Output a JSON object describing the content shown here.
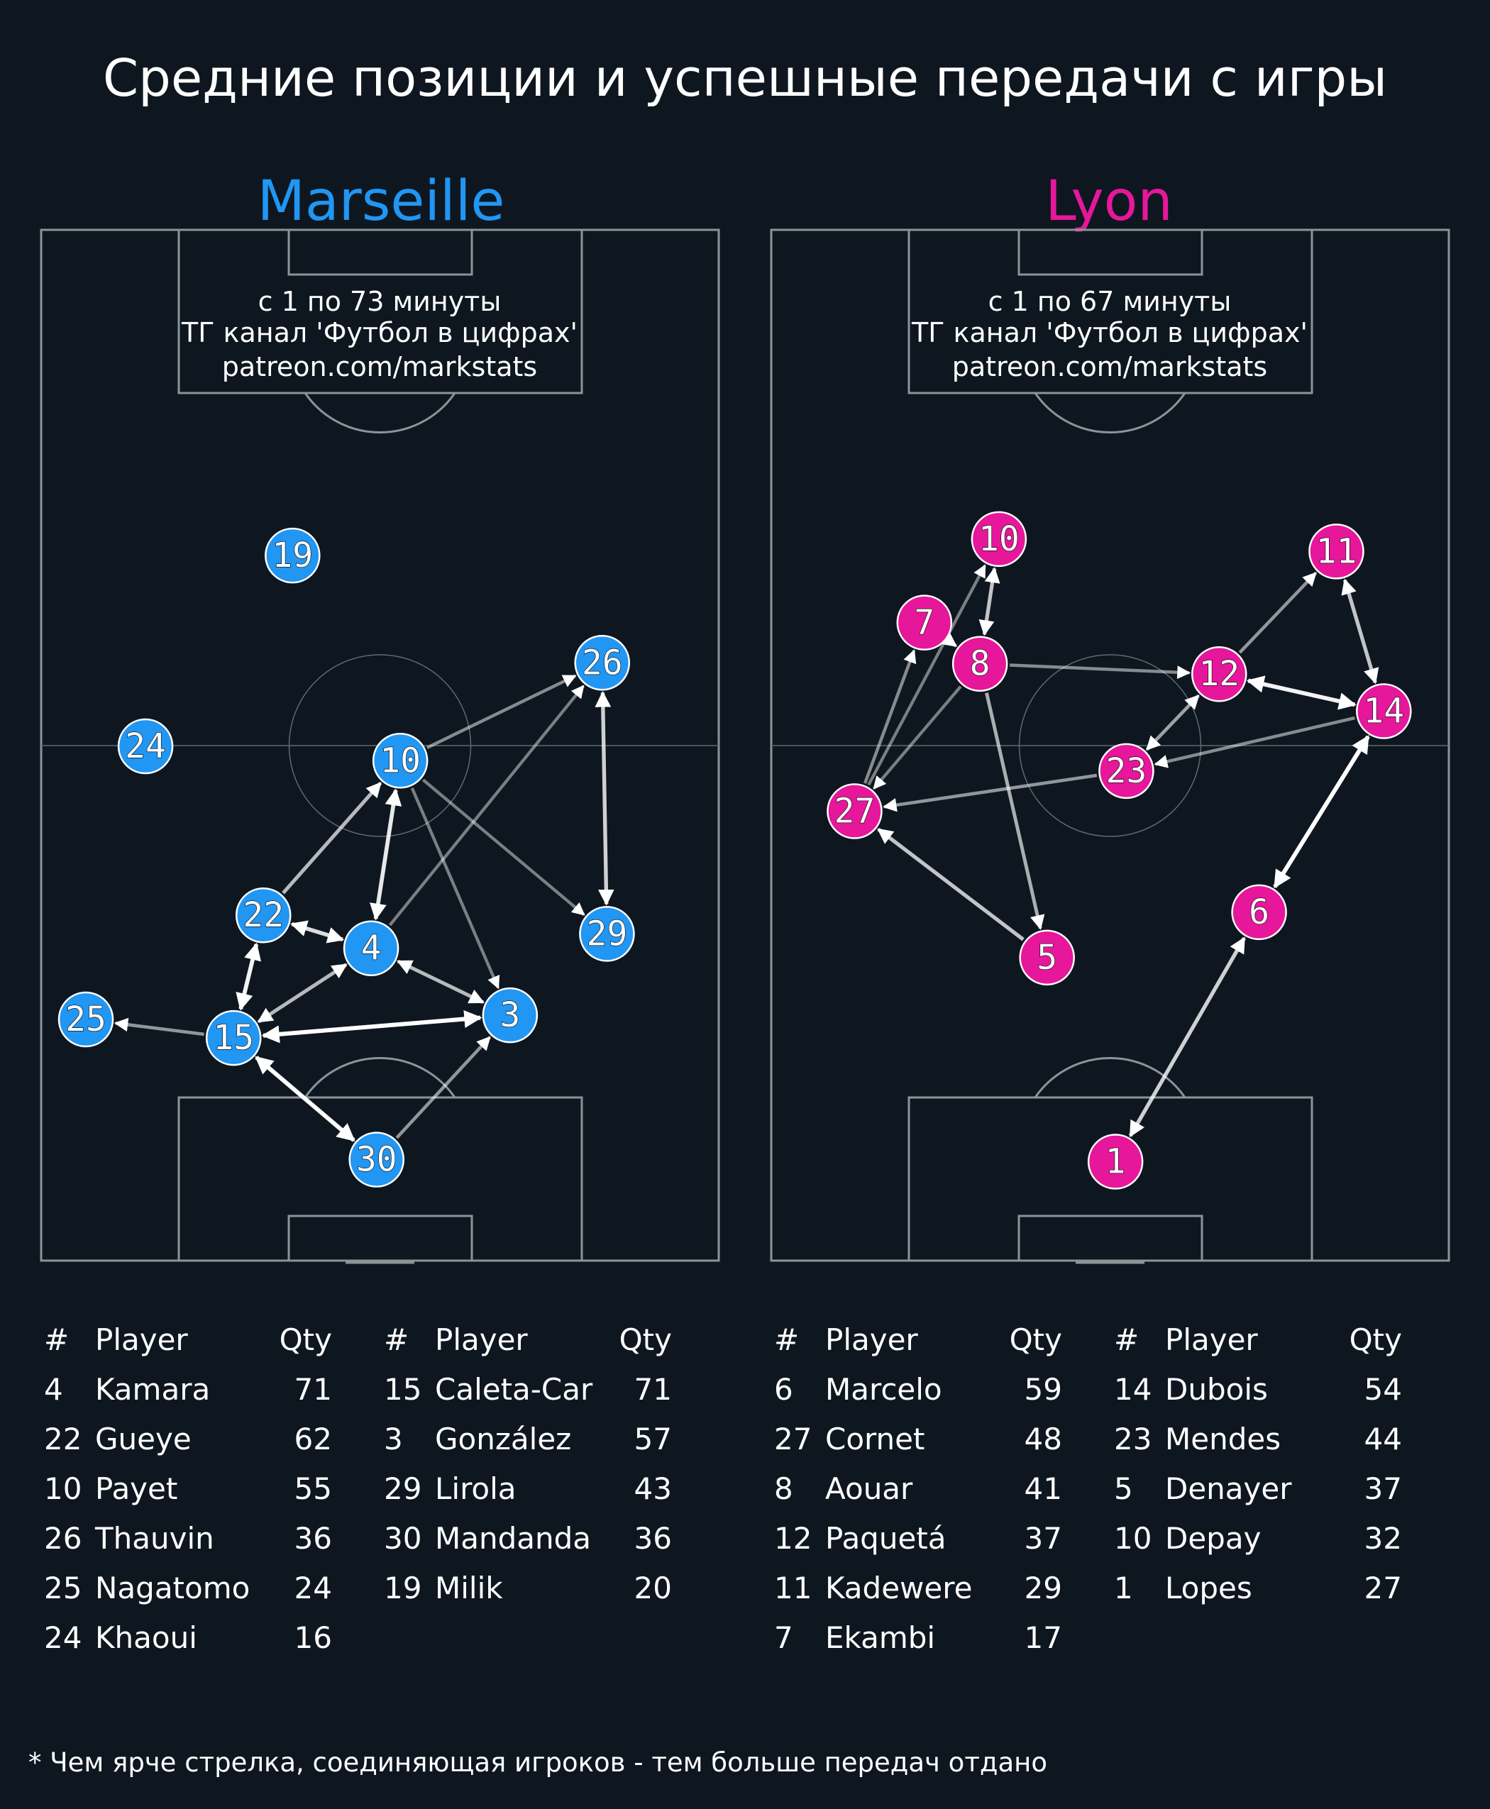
{
  "title": "Средние позиции и успешные передачи с игры",
  "footnote": "* Чем ярче стрелка, соединяющая игроков - тем больше передач отдано",
  "colors": {
    "background": "#0e1720",
    "lines": "#8a9598",
    "marseille": "#2196f3",
    "lyon": "#e6179a"
  },
  "teams": [
    {
      "name": "Marseille",
      "color": "#2196f3",
      "info": [
        "с 1 по 73 минуты",
        "ТГ канал 'Футбол в цифрах'",
        "patreon.com/markstats"
      ],
      "players": [
        {
          "num": "19",
          "x": 37.1,
          "y": 68.4
        },
        {
          "num": "24",
          "x": 15.4,
          "y": 49.9
        },
        {
          "num": "26",
          "x": 82.8,
          "y": 58.0
        },
        {
          "num": "10",
          "x": 53.0,
          "y": 48.5
        },
        {
          "num": "22",
          "x": 32.8,
          "y": 33.5
        },
        {
          "num": "4",
          "x": 48.7,
          "y": 30.3
        },
        {
          "num": "29",
          "x": 83.5,
          "y": 31.7
        },
        {
          "num": "3",
          "x": 69.2,
          "y": 23.8
        },
        {
          "num": "25",
          "x": 6.6,
          "y": 23.4
        },
        {
          "num": "15",
          "x": 28.4,
          "y": 21.6
        },
        {
          "num": "30",
          "x": 49.5,
          "y": 9.8
        }
      ],
      "passes": [
        {
          "from": "30",
          "to": "15",
          "alpha": 1.0,
          "both": true
        },
        {
          "from": "15",
          "to": "3",
          "alpha": 1.0,
          "both": true
        },
        {
          "from": "15",
          "to": "22",
          "alpha": 0.95,
          "both": true
        },
        {
          "from": "4",
          "to": "10",
          "alpha": 0.9,
          "both": true
        },
        {
          "from": "22",
          "to": "4",
          "alpha": 0.85,
          "both": true
        },
        {
          "from": "4",
          "to": "3",
          "alpha": 0.7,
          "both": true
        },
        {
          "from": "15",
          "to": "4",
          "alpha": 0.7,
          "both": true
        },
        {
          "from": "26",
          "to": "29",
          "alpha": 0.8,
          "both": true
        },
        {
          "from": "22",
          "to": "10",
          "alpha": 0.7,
          "both": false
        },
        {
          "from": "30",
          "to": "3",
          "alpha": 0.55,
          "both": false
        },
        {
          "from": "15",
          "to": "25",
          "alpha": 0.55,
          "both": false
        },
        {
          "from": "10",
          "to": "26",
          "alpha": 0.5,
          "both": false
        },
        {
          "from": "4",
          "to": "26",
          "alpha": 0.45,
          "both": false
        },
        {
          "from": "10",
          "to": "3",
          "alpha": 0.45,
          "both": false
        },
        {
          "from": "10",
          "to": "29",
          "alpha": 0.45,
          "both": false
        }
      ],
      "tables": [
        {
          "headers": [
            "#",
            "Player",
            "Qty"
          ],
          "rows": [
            [
              "4",
              "Kamara",
              "71"
            ],
            [
              "22",
              "Gueye",
              "62"
            ],
            [
              "10",
              "Payet",
              "55"
            ],
            [
              "26",
              "Thauvin",
              "36"
            ],
            [
              "25",
              "Nagatomo",
              "24"
            ],
            [
              "24",
              "Khaoui",
              "16"
            ]
          ]
        },
        {
          "headers": [
            "#",
            "Player",
            "Qty"
          ],
          "rows": [
            [
              "15",
              "Caleta-Car",
              "71"
            ],
            [
              "3",
              "González",
              "57"
            ],
            [
              "29",
              "Lirola",
              "43"
            ],
            [
              "30",
              "Mandanda",
              "36"
            ],
            [
              "19",
              "Milik",
              "20"
            ]
          ]
        }
      ]
    },
    {
      "name": "Lyon",
      "color": "#e6179a",
      "info": [
        "с 1 по 67 минуты",
        "ТГ канал 'Футбол в цифрах'",
        "patreon.com/markstats"
      ],
      "players": [
        {
          "num": "10",
          "x": 33.6,
          "y": 70.0
        },
        {
          "num": "11",
          "x": 83.4,
          "y": 68.8
        },
        {
          "num": "7",
          "x": 22.6,
          "y": 61.9
        },
        {
          "num": "8",
          "x": 30.8,
          "y": 57.9
        },
        {
          "num": "12",
          "x": 66.1,
          "y": 56.9
        },
        {
          "num": "14",
          "x": 90.4,
          "y": 53.3
        },
        {
          "num": "23",
          "x": 52.4,
          "y": 47.5
        },
        {
          "num": "27",
          "x": 12.3,
          "y": 43.6
        },
        {
          "num": "6",
          "x": 72.0,
          "y": 33.8
        },
        {
          "num": "5",
          "x": 40.7,
          "y": 29.4
        },
        {
          "num": "1",
          "x": 50.8,
          "y": 9.6
        }
      ],
      "passes": [
        {
          "from": "6",
          "to": "14",
          "alpha": 1.0,
          "both": true
        },
        {
          "from": "12",
          "to": "14",
          "alpha": 0.95,
          "both": true
        },
        {
          "from": "1",
          "to": "6",
          "alpha": 0.8,
          "both": true
        },
        {
          "from": "11",
          "to": "14",
          "alpha": 0.75,
          "both": true
        },
        {
          "from": "10",
          "to": "8",
          "alpha": 0.75,
          "both": true
        },
        {
          "from": "23",
          "to": "12",
          "alpha": 0.6,
          "both": true
        },
        {
          "from": "5",
          "to": "27",
          "alpha": 0.75,
          "both": false
        },
        {
          "from": "8",
          "to": "5",
          "alpha": 0.65,
          "both": false
        },
        {
          "from": "7",
          "to": "8",
          "alpha": 0.6,
          "both": false
        },
        {
          "from": "12",
          "to": "11",
          "alpha": 0.55,
          "both": false
        },
        {
          "from": "23",
          "to": "27",
          "alpha": 0.55,
          "both": false
        },
        {
          "from": "14",
          "to": "23",
          "alpha": 0.5,
          "both": false
        },
        {
          "from": "8",
          "to": "12",
          "alpha": 0.5,
          "both": false
        },
        {
          "from": "27",
          "to": "7",
          "alpha": 0.5,
          "both": false
        },
        {
          "from": "27",
          "to": "10",
          "alpha": 0.45,
          "both": false
        },
        {
          "from": "8",
          "to": "27",
          "alpha": 0.45,
          "both": false
        }
      ],
      "tables": [
        {
          "headers": [
            "#",
            "Player",
            "Qty"
          ],
          "rows": [
            [
              "6",
              "Marcelo",
              "59"
            ],
            [
              "27",
              "Cornet",
              "48"
            ],
            [
              "8",
              "Aouar",
              "41"
            ],
            [
              "12",
              "Paquetá",
              "37"
            ],
            [
              "11",
              "Kadewere",
              "29"
            ],
            [
              "7",
              "Ekambi",
              "17"
            ]
          ]
        },
        {
          "headers": [
            "#",
            "Player",
            "Qty"
          ],
          "rows": [
            [
              "14",
              "Dubois",
              "54"
            ],
            [
              "23",
              "Mendes",
              "44"
            ],
            [
              "5",
              "Denayer",
              "37"
            ],
            [
              "10",
              "Depay",
              "32"
            ],
            [
              "1",
              "Lopes",
              "27"
            ]
          ]
        }
      ]
    }
  ]
}
